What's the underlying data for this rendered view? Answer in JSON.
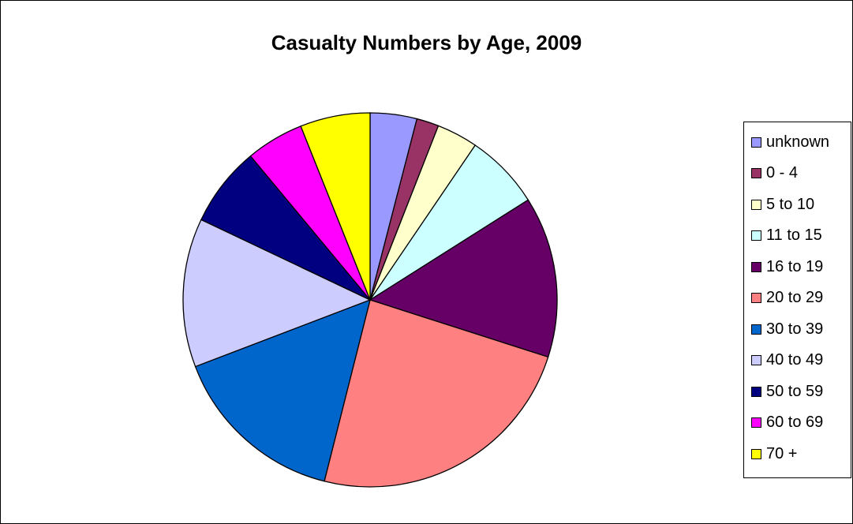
{
  "chart_data": {
    "type": "pie",
    "title": "Casualty Numbers by Age, 2009",
    "legend_position": "right",
    "categories": [
      "unknown",
      "0 - 4",
      "5 to 10",
      "11 to 15",
      "16 to 19",
      "20 to 29",
      "30 to 39",
      "40 to 49",
      "50 to 59",
      "60 to 69",
      "70 +"
    ],
    "values": [
      4.2,
      2.0,
      3.7,
      6.8,
      14.5,
      25.0,
      15.9,
      13.4,
      7.2,
      5.2,
      6.3
    ],
    "colors": [
      "#9999FF",
      "#993366",
      "#FFFFCC",
      "#CCFFFF",
      "#660066",
      "#FF8080",
      "#0066CC",
      "#CCCCFF",
      "#000080",
      "#FF00FF",
      "#FFFF00"
    ]
  }
}
